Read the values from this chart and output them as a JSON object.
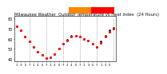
{
  "title": "Milwaukee Weather  Outdoor Temperature vs Heat Index  (24 Hours)",
  "title_fontsize": 3.8,
  "bg_color": "#ffffff",
  "plot_bg": "#ffffff",
  "temp_color": "#ff0000",
  "heat_color": "#000000",
  "legend_orange": "#ff8800",
  "legend_red": "#ff0000",
  "ylim": [
    38,
    82
  ],
  "yticks": [
    40,
    50,
    60,
    70,
    80
  ],
  "ytick_fontsize": 3.5,
  "xtick_fontsize": 2.8,
  "grid_color": "#999999",
  "hours": [
    0,
    1,
    2,
    3,
    4,
    5,
    6,
    7,
    8,
    9,
    10,
    11,
    12,
    13,
    14,
    15,
    16,
    17,
    18,
    19,
    20,
    21,
    22,
    23
  ],
  "temp_vals": [
    72,
    68,
    62,
    57,
    52,
    47,
    44,
    41,
    42,
    45,
    50,
    55,
    58,
    62,
    63,
    62,
    60,
    58,
    55,
    52,
    56,
    62,
    67,
    70
  ],
  "heat_vals": [
    72,
    68,
    62,
    57,
    52,
    47,
    44,
    41,
    42,
    45,
    50,
    55,
    59,
    63,
    63,
    62,
    60,
    58,
    55,
    52,
    57,
    63,
    68,
    71
  ],
  "xtick_labels": [
    "1",
    "3",
    "5",
    "7",
    "1",
    "3",
    "5",
    "7",
    "1",
    "3",
    "5",
    "7",
    "1",
    "3",
    "5",
    "7",
    "1",
    "3",
    "5",
    "7",
    "1",
    "3",
    "5"
  ],
  "xtick_positions": [
    0,
    1,
    2,
    3,
    4,
    5,
    6,
    7,
    8,
    9,
    10,
    11,
    12,
    13,
    14,
    15,
    16,
    17,
    18,
    19,
    20,
    21,
    22
  ],
  "grid_positions": [
    3,
    7,
    11,
    15,
    19,
    23
  ],
  "temp_marker_size": 1.2,
  "heat_marker_size": 0.9
}
